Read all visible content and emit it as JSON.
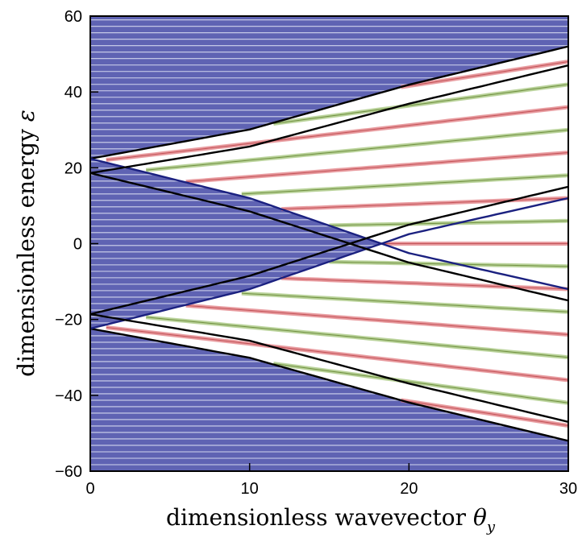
{
  "chart_data": {
    "type": "line",
    "title": "",
    "xlabel": "dimensionless wavevector",
    "xlabel_symbol": "θ",
    "xlabel_subscript": "y",
    "ylabel": "dimensionless energy",
    "ylabel_symbol": "ε",
    "xlim": [
      0,
      30
    ],
    "ylim": [
      -60,
      60
    ],
    "xticks": [
      0,
      10,
      20,
      30
    ],
    "yticks": [
      -60,
      -40,
      -20,
      0,
      20,
      40,
      60
    ],
    "xtick_labels": [
      "0",
      "10",
      "20",
      "30"
    ],
    "ytick_labels": [
      "−60",
      "−40",
      "−20",
      "0",
      "20",
      "40",
      "60"
    ],
    "grid": false,
    "legend": "none",
    "colors": {
      "bulk_region": "#5f63b3",
      "bulk_lines": "#e6e8f7",
      "upper_band_fill": "#ffffff",
      "green_fill": "#a3c47a",
      "red_fill": "#e07b80",
      "green_lines": "#6f8f3e",
      "red_lines": "#c25055",
      "black_curves": "#000000",
      "edge_curves": "#1b2180"
    },
    "series": [
      {
        "x": [
          0,
          10,
          20,
          30
        ],
        "y": [
          22.4,
          30.1,
          41.9,
          52.0
        ]
      },
      {
        "x": [
          0,
          10,
          20,
          30
        ],
        "y": [
          -22.4,
          -30.1,
          -41.9,
          -52.0
        ]
      },
      {
        "x": [
          0,
          10,
          20,
          30
        ],
        "y": [
          22.4,
          12.0,
          -2.5,
          -12.0
        ]
      },
      {
        "x": [
          0,
          10,
          20,
          30
        ],
        "y": [
          -22.4,
          -12.0,
          2.5,
          12.0
        ]
      },
      {
        "x": [
          0,
          10,
          20,
          30
        ],
        "y": [
          18.6,
          25.6,
          36.9,
          47.0
        ]
      },
      {
        "x": [
          0,
          10,
          20,
          30
        ],
        "y": [
          -18.6,
          -25.6,
          -36.9,
          -47.0
        ]
      },
      {
        "x": [
          0,
          10,
          20,
          30
        ],
        "y": [
          18.6,
          8.5,
          -5.0,
          -15.0
        ]
      },
      {
        "x": [
          0,
          10,
          20,
          30
        ],
        "y": [
          -18.6,
          -8.5,
          5.0,
          15.0
        ]
      }
    ]
  }
}
